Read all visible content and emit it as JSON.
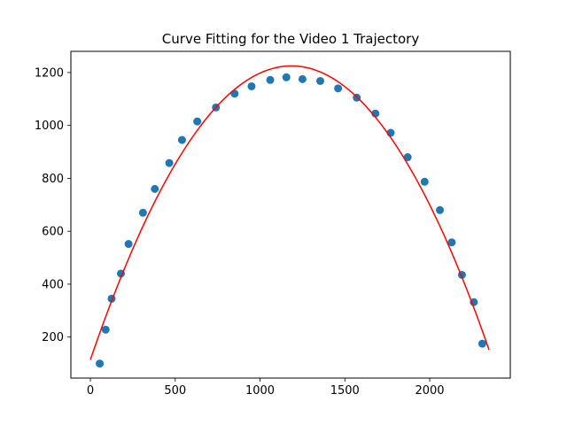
{
  "chart_data": {
    "type": "scatter",
    "title": "Curve Fitting for the Video 1 Trajectory",
    "xlabel": "",
    "ylabel": "",
    "xlim": [
      -115,
      2475
    ],
    "ylim": [
      45,
      1280
    ],
    "x_ticks": [
      0,
      500,
      1000,
      1500,
      2000
    ],
    "y_ticks": [
      200,
      400,
      600,
      800,
      1000,
      1200
    ],
    "grid": false,
    "points": {
      "color": "#1f77b4",
      "x": [
        55,
        90,
        125,
        180,
        225,
        310,
        380,
        465,
        540,
        630,
        740,
        850,
        950,
        1060,
        1155,
        1250,
        1355,
        1460,
        1570,
        1680,
        1770,
        1870,
        1970,
        2060,
        2130,
        2190,
        2260,
        2310
      ],
      "y": [
        100,
        228,
        345,
        440,
        552,
        670,
        760,
        858,
        945,
        1015,
        1068,
        1120,
        1148,
        1172,
        1182,
        1175,
        1168,
        1140,
        1105,
        1045,
        972,
        880,
        787,
        680,
        558,
        435,
        332,
        175
      ]
    },
    "fit_curve": {
      "color": "#ff0000",
      "type": "quadratic",
      "vertex_x": 1185,
      "vertex_y": 1225,
      "a": -0.000791,
      "x_range": [
        0,
        2350
      ]
    }
  }
}
